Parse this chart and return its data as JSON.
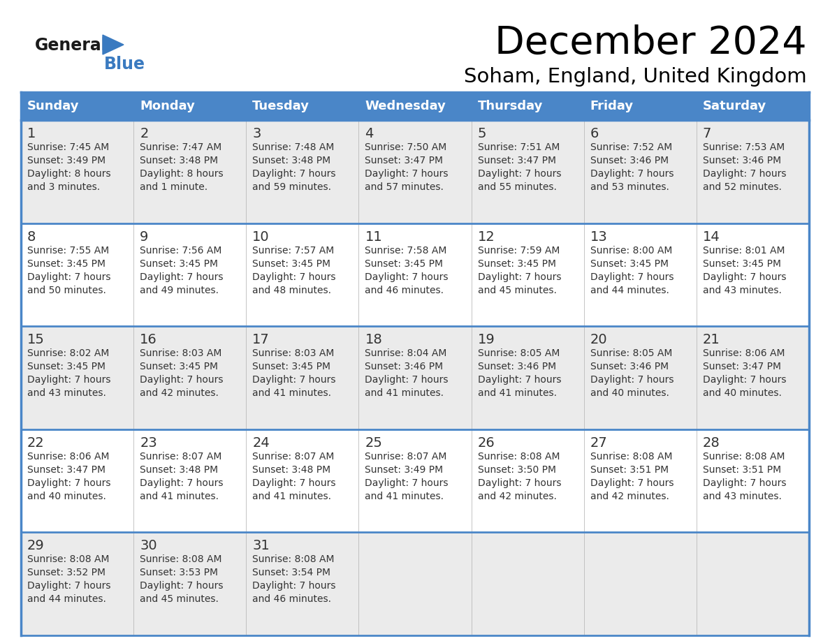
{
  "title": "December 2024",
  "subtitle": "Soham, England, United Kingdom",
  "header_color": "#4A86C8",
  "header_text_color": "#FFFFFF",
  "row_bg_odd": "#EBEBEB",
  "row_bg_even": "#FFFFFF",
  "border_color": "#4A86C8",
  "text_color": "#333333",
  "day_names": [
    "Sunday",
    "Monday",
    "Tuesday",
    "Wednesday",
    "Thursday",
    "Friday",
    "Saturday"
  ],
  "logo_general_color": "#1a1a1a",
  "logo_blue_color": "#3A7AC0",
  "logo_triangle_color": "#3A7AC0",
  "days": [
    {
      "day": 1,
      "col": 0,
      "row": 0,
      "sunrise": "7:45 AM",
      "sunset": "3:49 PM",
      "daylight": "8 hours and 3 minutes."
    },
    {
      "day": 2,
      "col": 1,
      "row": 0,
      "sunrise": "7:47 AM",
      "sunset": "3:48 PM",
      "daylight": "8 hours and 1 minute."
    },
    {
      "day": 3,
      "col": 2,
      "row": 0,
      "sunrise": "7:48 AM",
      "sunset": "3:48 PM",
      "daylight": "7 hours and 59 minutes."
    },
    {
      "day": 4,
      "col": 3,
      "row": 0,
      "sunrise": "7:50 AM",
      "sunset": "3:47 PM",
      "daylight": "7 hours and 57 minutes."
    },
    {
      "day": 5,
      "col": 4,
      "row": 0,
      "sunrise": "7:51 AM",
      "sunset": "3:47 PM",
      "daylight": "7 hours and 55 minutes."
    },
    {
      "day": 6,
      "col": 5,
      "row": 0,
      "sunrise": "7:52 AM",
      "sunset": "3:46 PM",
      "daylight": "7 hours and 53 minutes."
    },
    {
      "day": 7,
      "col": 6,
      "row": 0,
      "sunrise": "7:53 AM",
      "sunset": "3:46 PM",
      "daylight": "7 hours and 52 minutes."
    },
    {
      "day": 8,
      "col": 0,
      "row": 1,
      "sunrise": "7:55 AM",
      "sunset": "3:45 PM",
      "daylight": "7 hours and 50 minutes."
    },
    {
      "day": 9,
      "col": 1,
      "row": 1,
      "sunrise": "7:56 AM",
      "sunset": "3:45 PM",
      "daylight": "7 hours and 49 minutes."
    },
    {
      "day": 10,
      "col": 2,
      "row": 1,
      "sunrise": "7:57 AM",
      "sunset": "3:45 PM",
      "daylight": "7 hours and 48 minutes."
    },
    {
      "day": 11,
      "col": 3,
      "row": 1,
      "sunrise": "7:58 AM",
      "sunset": "3:45 PM",
      "daylight": "7 hours and 46 minutes."
    },
    {
      "day": 12,
      "col": 4,
      "row": 1,
      "sunrise": "7:59 AM",
      "sunset": "3:45 PM",
      "daylight": "7 hours and 45 minutes."
    },
    {
      "day": 13,
      "col": 5,
      "row": 1,
      "sunrise": "8:00 AM",
      "sunset": "3:45 PM",
      "daylight": "7 hours and 44 minutes."
    },
    {
      "day": 14,
      "col": 6,
      "row": 1,
      "sunrise": "8:01 AM",
      "sunset": "3:45 PM",
      "daylight": "7 hours and 43 minutes."
    },
    {
      "day": 15,
      "col": 0,
      "row": 2,
      "sunrise": "8:02 AM",
      "sunset": "3:45 PM",
      "daylight": "7 hours and 43 minutes."
    },
    {
      "day": 16,
      "col": 1,
      "row": 2,
      "sunrise": "8:03 AM",
      "sunset": "3:45 PM",
      "daylight": "7 hours and 42 minutes."
    },
    {
      "day": 17,
      "col": 2,
      "row": 2,
      "sunrise": "8:03 AM",
      "sunset": "3:45 PM",
      "daylight": "7 hours and 41 minutes."
    },
    {
      "day": 18,
      "col": 3,
      "row": 2,
      "sunrise": "8:04 AM",
      "sunset": "3:46 PM",
      "daylight": "7 hours and 41 minutes."
    },
    {
      "day": 19,
      "col": 4,
      "row": 2,
      "sunrise": "8:05 AM",
      "sunset": "3:46 PM",
      "daylight": "7 hours and 41 minutes."
    },
    {
      "day": 20,
      "col": 5,
      "row": 2,
      "sunrise": "8:05 AM",
      "sunset": "3:46 PM",
      "daylight": "7 hours and 40 minutes."
    },
    {
      "day": 21,
      "col": 6,
      "row": 2,
      "sunrise": "8:06 AM",
      "sunset": "3:47 PM",
      "daylight": "7 hours and 40 minutes."
    },
    {
      "day": 22,
      "col": 0,
      "row": 3,
      "sunrise": "8:06 AM",
      "sunset": "3:47 PM",
      "daylight": "7 hours and 40 minutes."
    },
    {
      "day": 23,
      "col": 1,
      "row": 3,
      "sunrise": "8:07 AM",
      "sunset": "3:48 PM",
      "daylight": "7 hours and 41 minutes."
    },
    {
      "day": 24,
      "col": 2,
      "row": 3,
      "sunrise": "8:07 AM",
      "sunset": "3:48 PM",
      "daylight": "7 hours and 41 minutes."
    },
    {
      "day": 25,
      "col": 3,
      "row": 3,
      "sunrise": "8:07 AM",
      "sunset": "3:49 PM",
      "daylight": "7 hours and 41 minutes."
    },
    {
      "day": 26,
      "col": 4,
      "row": 3,
      "sunrise": "8:08 AM",
      "sunset": "3:50 PM",
      "daylight": "7 hours and 42 minutes."
    },
    {
      "day": 27,
      "col": 5,
      "row": 3,
      "sunrise": "8:08 AM",
      "sunset": "3:51 PM",
      "daylight": "7 hours and 42 minutes."
    },
    {
      "day": 28,
      "col": 6,
      "row": 3,
      "sunrise": "8:08 AM",
      "sunset": "3:51 PM",
      "daylight": "7 hours and 43 minutes."
    },
    {
      "day": 29,
      "col": 0,
      "row": 4,
      "sunrise": "8:08 AM",
      "sunset": "3:52 PM",
      "daylight": "7 hours and 44 minutes."
    },
    {
      "day": 30,
      "col": 1,
      "row": 4,
      "sunrise": "8:08 AM",
      "sunset": "3:53 PM",
      "daylight": "7 hours and 45 minutes."
    },
    {
      "day": 31,
      "col": 2,
      "row": 4,
      "sunrise": "8:08 AM",
      "sunset": "3:54 PM",
      "daylight": "7 hours and 46 minutes."
    }
  ]
}
